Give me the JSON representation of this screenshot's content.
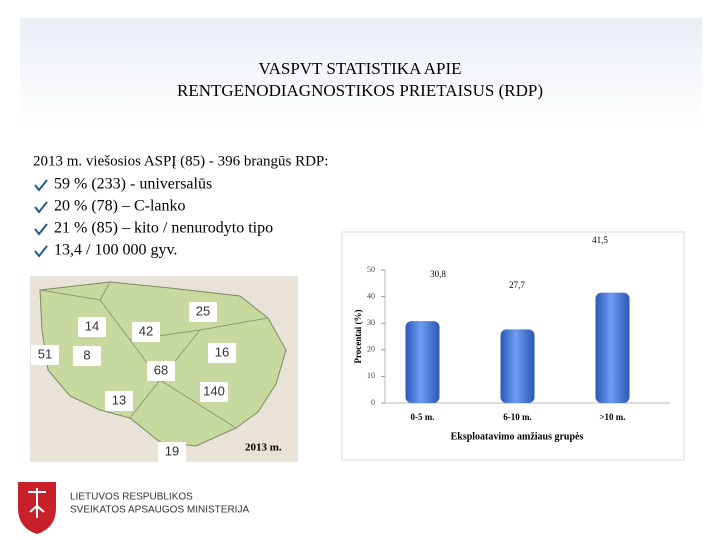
{
  "header": {
    "title": [
      "VASPVT STATISTIKA APIE",
      "RENTGENODIAGNOSTIKOS PRIETAISUS (RDP)"
    ]
  },
  "intro": "2013 m. viešosios ASPĮ (85) - 396 brangūs RDP:",
  "bullets": [
    "59 % (233) - universalūs",
    "20 % (78) – C-lanko",
    "21 % (85) – kito / nenurodyto tipo",
    "13,4 / 100 000 gyv."
  ],
  "map": {
    "labels": [
      25,
      14,
      42,
      51,
      8,
      16,
      68,
      140,
      13,
      19
    ],
    "caption": "2013 m."
  },
  "chart_data": {
    "type": "bar",
    "categories": [
      "0-5 m.",
      "6-10 m.",
      ">10 m."
    ],
    "values": [
      30.8,
      27.7,
      41.5
    ],
    "value_labels": [
      "30,8",
      "27,7",
      "41,5"
    ],
    "color": "#3b6fd6",
    "ylim": [
      0,
      50
    ],
    "yticks": [
      0,
      10,
      20,
      30,
      40,
      50
    ],
    "ylabel": "Procentai (%)",
    "xlabel": "Eksploatavimo amžiaus grupės"
  },
  "footer": {
    "logo_lines": [
      "LIETUVOS RESPUBLIKOS",
      "SVEIKATOS APSAUGOS MINISTERIJA"
    ]
  }
}
